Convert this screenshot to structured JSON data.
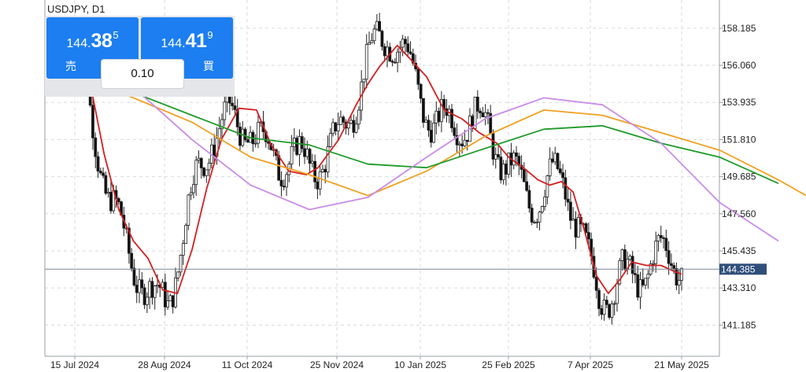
{
  "symbol": "USDJPY, D1",
  "sell": {
    "label": "売",
    "price_small": "144.",
    "price_big": "38",
    "price_sup": "5"
  },
  "buy": {
    "label": "買",
    "price_small": "144.",
    "price_big": "41",
    "price_sup": "9"
  },
  "lot_value": "0.10",
  "current_price": "144.385",
  "colors": {
    "ma_fast": "#d41f1f",
    "ma_mid": "#f0a020",
    "ma_slow": "#1e9a28",
    "ma_violet": "#c98ce6",
    "price_label_bg": "#2f4f7a",
    "button_blue": "#1c7ef0"
  },
  "chart_data": {
    "type": "candlestick",
    "y_ticks": [
      "158.185",
      "156.060",
      "153.935",
      "151.810",
      "149.685",
      "147.560",
      "145.435",
      "143.310",
      "141.185"
    ],
    "x_ticks": [
      "15 Jul 2024",
      "28 Aug 2024",
      "11 Oct 2024",
      "25 Nov 2024",
      "10 Jan 2025",
      "25 Feb 2025",
      "7 Apr 2025",
      "21 May 2025"
    ],
    "ylim": [
      139.4,
      159.8
    ],
    "grid": true,
    "series": [
      {
        "name": "",
        "color": "#d41f1f",
        "points": [
          [
            0,
            157.2
          ],
          [
            0.06,
            154.4
          ],
          [
            0.1,
            151.0
          ],
          [
            0.15,
            147.8
          ],
          [
            0.2,
            146.0
          ],
          [
            0.25,
            145.0
          ],
          [
            0.3,
            143.2
          ],
          [
            0.35,
            143.0
          ],
          [
            0.4,
            145.5
          ],
          [
            0.45,
            149.0
          ],
          [
            0.5,
            151.8
          ],
          [
            0.56,
            153.6
          ],
          [
            0.62,
            153.5
          ],
          [
            0.67,
            151.5
          ],
          [
            0.73,
            150.0
          ],
          [
            0.79,
            149.8
          ],
          [
            0.83,
            150.2
          ],
          [
            0.9,
            151.8
          ],
          [
            0.96,
            153.8
          ],
          [
            1.0,
            155.0
          ],
          [
            1.04,
            156.0
          ],
          [
            1.1,
            157.2
          ],
          [
            1.14,
            156.5
          ],
          [
            1.2,
            155.4
          ],
          [
            1.26,
            153.5
          ],
          [
            1.32,
            153.0
          ],
          [
            1.38,
            152.2
          ],
          [
            1.44,
            151.6
          ],
          [
            1.48,
            150.8
          ],
          [
            1.53,
            150.2
          ],
          [
            1.58,
            149.5
          ],
          [
            1.62,
            149.2
          ],
          [
            1.66,
            149.4
          ],
          [
            1.7,
            148.8
          ],
          [
            1.74,
            146.5
          ],
          [
            1.78,
            144.0
          ],
          [
            1.82,
            143.0
          ],
          [
            1.86,
            143.8
          ],
          [
            1.9,
            144.8
          ],
          [
            1.95,
            144.6
          ],
          [
            2.0,
            144.6
          ],
          [
            2.04,
            144.3
          ],
          [
            2.07,
            144.1
          ]
        ]
      },
      {
        "name": "",
        "color": "#f0a020",
        "points": [
          [
            0,
            155.5
          ],
          [
            0.2,
            154.2
          ],
          [
            0.4,
            152.8
          ],
          [
            0.6,
            150.8
          ],
          [
            0.8,
            149.8
          ],
          [
            1.0,
            148.6
          ],
          [
            1.2,
            150.0
          ],
          [
            1.4,
            152.0
          ],
          [
            1.6,
            153.5
          ],
          [
            1.8,
            153.2
          ],
          [
            2.0,
            152.2
          ],
          [
            2.2,
            151.2
          ],
          [
            2.4,
            149.5
          ],
          [
            2.6,
            147.6
          ]
        ]
      },
      {
        "name": "",
        "color": "#1e9a28",
        "points": [
          [
            0,
            154.6
          ],
          [
            0.2,
            154.5
          ],
          [
            0.4,
            153.2
          ],
          [
            0.6,
            151.9
          ],
          [
            0.8,
            151.5
          ],
          [
            1.0,
            150.4
          ],
          [
            1.2,
            150.2
          ],
          [
            1.4,
            151.3
          ],
          [
            1.6,
            152.4
          ],
          [
            1.8,
            152.6
          ],
          [
            2.0,
            151.6
          ],
          [
            2.2,
            150.8
          ],
          [
            2.4,
            149.3
          ]
        ]
      },
      {
        "name": "",
        "color": "#c98ce6",
        "points": [
          [
            0,
            155.9
          ],
          [
            0.2,
            154.8
          ],
          [
            0.4,
            151.8
          ],
          [
            0.6,
            149.2
          ],
          [
            0.8,
            147.8
          ],
          [
            1.0,
            148.5
          ],
          [
            1.2,
            150.8
          ],
          [
            1.4,
            153.0
          ],
          [
            1.6,
            154.2
          ],
          [
            1.8,
            153.8
          ],
          [
            2.0,
            151.6
          ],
          [
            2.2,
            148.2
          ],
          [
            2.4,
            146.0
          ]
        ]
      }
    ]
  }
}
